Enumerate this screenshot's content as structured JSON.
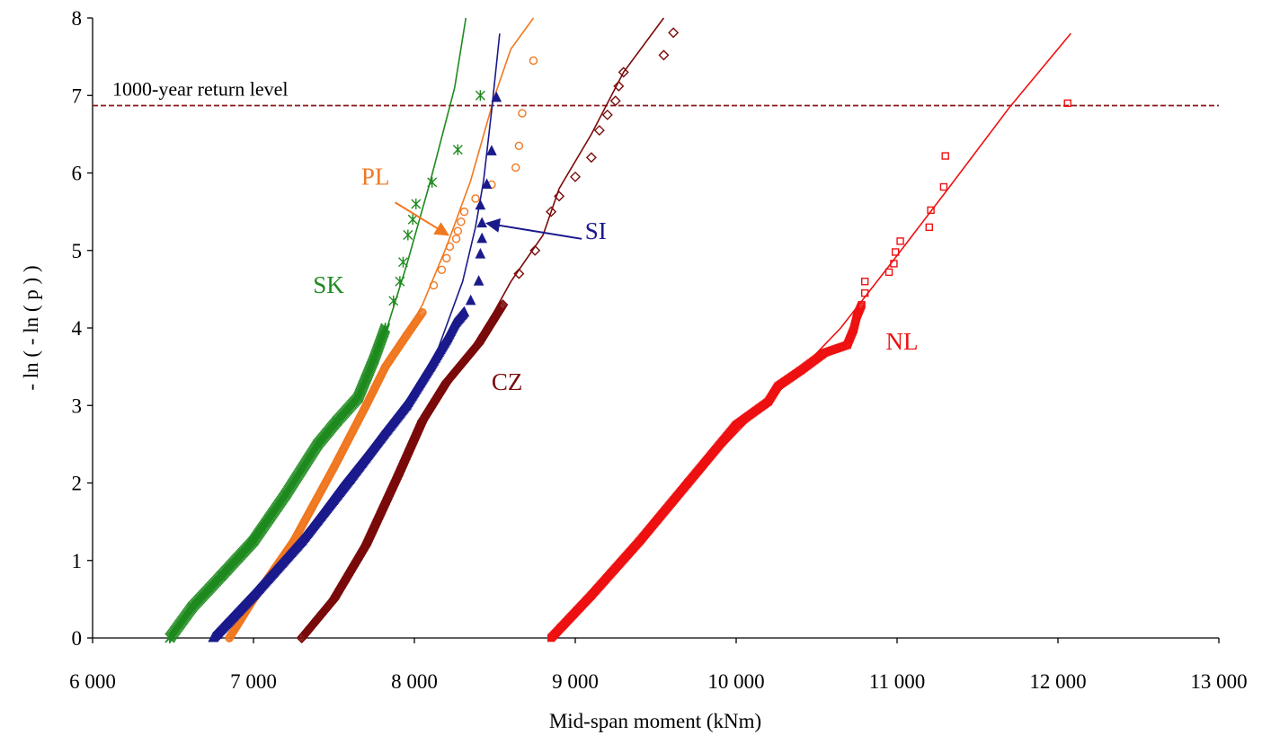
{
  "chart_data": {
    "type": "scatter",
    "xlabel": "Mid-span moment (kNm)",
    "ylabel": "- ln ( - ln ( p ) )",
    "xlim": [
      6000,
      13000
    ],
    "ylim": [
      0,
      8
    ],
    "x_ticks": [
      6000,
      7000,
      8000,
      9000,
      10000,
      11000,
      12000,
      13000
    ],
    "x_tick_labels": [
      "6 000",
      "7 000",
      "8 000",
      "9 000",
      "10 000",
      "11 000",
      "12 000",
      "13 000"
    ],
    "y_ticks": [
      0,
      1,
      2,
      3,
      4,
      5,
      6,
      7,
      8
    ],
    "y_tick_labels": [
      "0",
      "1",
      "2",
      "3",
      "4",
      "5",
      "6",
      "7",
      "8"
    ],
    "grid": false,
    "reference_line": {
      "y": 6.87,
      "label": "1000-year return level",
      "color": "#8B1A1A"
    },
    "series": [
      {
        "name": "SK",
        "color": "#1E8A1E",
        "marker": "asterisk",
        "curve": [
          [
            6500,
            0.0
          ],
          [
            6700,
            0.6
          ],
          [
            6950,
            1.2
          ],
          [
            7200,
            1.9
          ],
          [
            7450,
            2.6
          ],
          [
            7650,
            3.05
          ],
          [
            7800,
            3.8
          ],
          [
            7950,
            4.8
          ],
          [
            8100,
            5.9
          ],
          [
            8250,
            7.1
          ],
          [
            8320,
            8.0
          ]
        ],
        "points": [
          [
            6480,
            0.0
          ],
          [
            6620,
            0.4
          ],
          [
            6800,
            0.8
          ],
          [
            7000,
            1.25
          ],
          [
            7200,
            1.85
          ],
          [
            7400,
            2.5
          ],
          [
            7520,
            2.8
          ],
          [
            7650,
            3.1
          ],
          [
            7750,
            3.6
          ],
          [
            7820,
            4.0
          ],
          [
            7870,
            4.35
          ],
          [
            7910,
            4.6
          ],
          [
            7930,
            4.85
          ],
          [
            7960,
            5.2
          ],
          [
            7990,
            5.4
          ],
          [
            8010,
            5.6
          ],
          [
            8110,
            5.88
          ],
          [
            8270,
            6.3
          ],
          [
            8410,
            7.0
          ]
        ]
      },
      {
        "name": "PL",
        "color": "#F07820",
        "marker": "circle",
        "curve": [
          [
            6850,
            0.0
          ],
          [
            7050,
            0.6
          ],
          [
            7300,
            1.4
          ],
          [
            7550,
            2.3
          ],
          [
            7750,
            3.2
          ],
          [
            7900,
            3.75
          ],
          [
            8050,
            4.3
          ],
          [
            8200,
            5.05
          ],
          [
            8350,
            5.9
          ],
          [
            8500,
            7.0
          ],
          [
            8600,
            7.6
          ],
          [
            8740,
            8.0
          ]
        ],
        "points": [
          [
            6850,
            0.0
          ],
          [
            7000,
            0.5
          ],
          [
            7250,
            1.25
          ],
          [
            7500,
            2.2
          ],
          [
            7700,
            3.0
          ],
          [
            7820,
            3.5
          ],
          [
            7950,
            3.9
          ],
          [
            8050,
            4.2
          ],
          [
            8120,
            4.55
          ],
          [
            8170,
            4.75
          ],
          [
            8200,
            4.9
          ],
          [
            8220,
            5.05
          ],
          [
            8260,
            5.15
          ],
          [
            8270,
            5.25
          ],
          [
            8290,
            5.37
          ],
          [
            8310,
            5.5
          ],
          [
            8380,
            5.67
          ],
          [
            8480,
            5.85
          ],
          [
            8630,
            6.07
          ],
          [
            8650,
            6.35
          ],
          [
            8670,
            6.77
          ],
          [
            8740,
            7.45
          ]
        ]
      },
      {
        "name": "SI",
        "color": "#1A1A8C",
        "marker": "triangle",
        "curve": [
          [
            6750,
            0.0
          ],
          [
            7000,
            0.6
          ],
          [
            7300,
            1.3
          ],
          [
            7550,
            2.0
          ],
          [
            7800,
            2.65
          ],
          [
            8000,
            3.2
          ],
          [
            8150,
            3.75
          ],
          [
            8300,
            4.6
          ],
          [
            8380,
            5.3
          ],
          [
            8430,
            5.9
          ],
          [
            8480,
            6.8
          ],
          [
            8510,
            7.4
          ],
          [
            8530,
            7.8
          ]
        ],
        "points": [
          [
            6750,
            0.0
          ],
          [
            7000,
            0.55
          ],
          [
            7300,
            1.25
          ],
          [
            7600,
            2.05
          ],
          [
            7800,
            2.6
          ],
          [
            7950,
            3.0
          ],
          [
            8100,
            3.5
          ],
          [
            8200,
            3.85
          ],
          [
            8250,
            4.05
          ],
          [
            8310,
            4.2
          ],
          [
            8350,
            4.35
          ],
          [
            8400,
            4.6
          ],
          [
            8410,
            4.95
          ],
          [
            8420,
            5.15
          ],
          [
            8420,
            5.35
          ],
          [
            8410,
            5.58
          ],
          [
            8450,
            5.85
          ],
          [
            8480,
            6.28
          ],
          [
            8510,
            6.97
          ]
        ]
      },
      {
        "name": "CZ",
        "color": "#7A0A0A",
        "marker": "diamond",
        "curve": [
          [
            7300,
            0.0
          ],
          [
            7500,
            0.55
          ],
          [
            7750,
            1.4
          ],
          [
            7950,
            2.3
          ],
          [
            8150,
            3.15
          ],
          [
            8400,
            3.85
          ],
          [
            8600,
            4.6
          ],
          [
            8800,
            5.2
          ],
          [
            8900,
            5.8
          ],
          [
            9100,
            6.5
          ],
          [
            9300,
            7.3
          ],
          [
            9550,
            8.0
          ]
        ],
        "points": [
          [
            7300,
            0.0
          ],
          [
            7500,
            0.5
          ],
          [
            7700,
            1.2
          ],
          [
            7900,
            2.1
          ],
          [
            8050,
            2.8
          ],
          [
            8200,
            3.3
          ],
          [
            8400,
            3.8
          ],
          [
            8550,
            4.3
          ],
          [
            8650,
            4.7
          ],
          [
            8750,
            5.0
          ],
          [
            8850,
            5.5
          ],
          [
            8900,
            5.7
          ],
          [
            9000,
            5.95
          ],
          [
            9100,
            6.2
          ],
          [
            9150,
            6.55
          ],
          [
            9200,
            6.75
          ],
          [
            9250,
            6.93
          ],
          [
            9270,
            7.12
          ],
          [
            9300,
            7.3
          ],
          [
            9550,
            7.52
          ],
          [
            9610,
            7.81
          ]
        ]
      },
      {
        "name": "NL",
        "color": "#EE1111",
        "marker": "square",
        "curve": [
          [
            8850,
            0.0
          ],
          [
            9100,
            0.6
          ],
          [
            9400,
            1.3
          ],
          [
            9750,
            2.1
          ],
          [
            10050,
            2.75
          ],
          [
            10350,
            3.35
          ],
          [
            10650,
            4.0
          ],
          [
            10950,
            4.8
          ],
          [
            11300,
            5.75
          ],
          [
            11700,
            6.85
          ],
          [
            12080,
            7.8
          ]
        ],
        "points": [
          [
            8850,
            0.0
          ],
          [
            9100,
            0.55
          ],
          [
            9400,
            1.25
          ],
          [
            9700,
            2.0
          ],
          [
            10000,
            2.75
          ],
          [
            10200,
            3.05
          ],
          [
            10260,
            3.25
          ],
          [
            10400,
            3.45
          ],
          [
            10550,
            3.68
          ],
          [
            10690,
            3.78
          ],
          [
            10730,
            3.98
          ],
          [
            10750,
            4.15
          ],
          [
            10780,
            4.3
          ],
          [
            10800,
            4.45
          ],
          [
            10800,
            4.6
          ],
          [
            10950,
            4.72
          ],
          [
            10980,
            4.83
          ],
          [
            10990,
            4.98
          ],
          [
            11020,
            5.12
          ],
          [
            11200,
            5.3
          ],
          [
            11210,
            5.52
          ],
          [
            11290,
            5.82
          ],
          [
            11300,
            6.22
          ],
          [
            12060,
            6.9
          ]
        ]
      }
    ],
    "labels": [
      {
        "series": "SK",
        "text": "SK",
        "x": 7370,
        "y": 4.45,
        "color": "#1E8A1E"
      },
      {
        "series": "PL",
        "text": "PL",
        "x": 7670,
        "y": 5.85,
        "color": "#F07820"
      },
      {
        "series": "SI",
        "text": "SI",
        "x": 9060,
        "y": 5.15,
        "color": "#1A1A8C"
      },
      {
        "series": "CZ",
        "text": "CZ",
        "x": 8480,
        "y": 3.2,
        "color": "#7A0A0A"
      },
      {
        "series": "NL",
        "text": "NL",
        "x": 10930,
        "y": 3.72,
        "color": "#EE1111"
      }
    ],
    "arrows": [
      {
        "series": "PL",
        "from": [
          7880,
          5.62
        ],
        "to": [
          8210,
          5.2
        ],
        "color": "#F07820"
      },
      {
        "series": "SI",
        "from": [
          9040,
          5.15
        ],
        "to": [
          8450,
          5.35
        ],
        "color": "#1A1A8C"
      }
    ]
  }
}
